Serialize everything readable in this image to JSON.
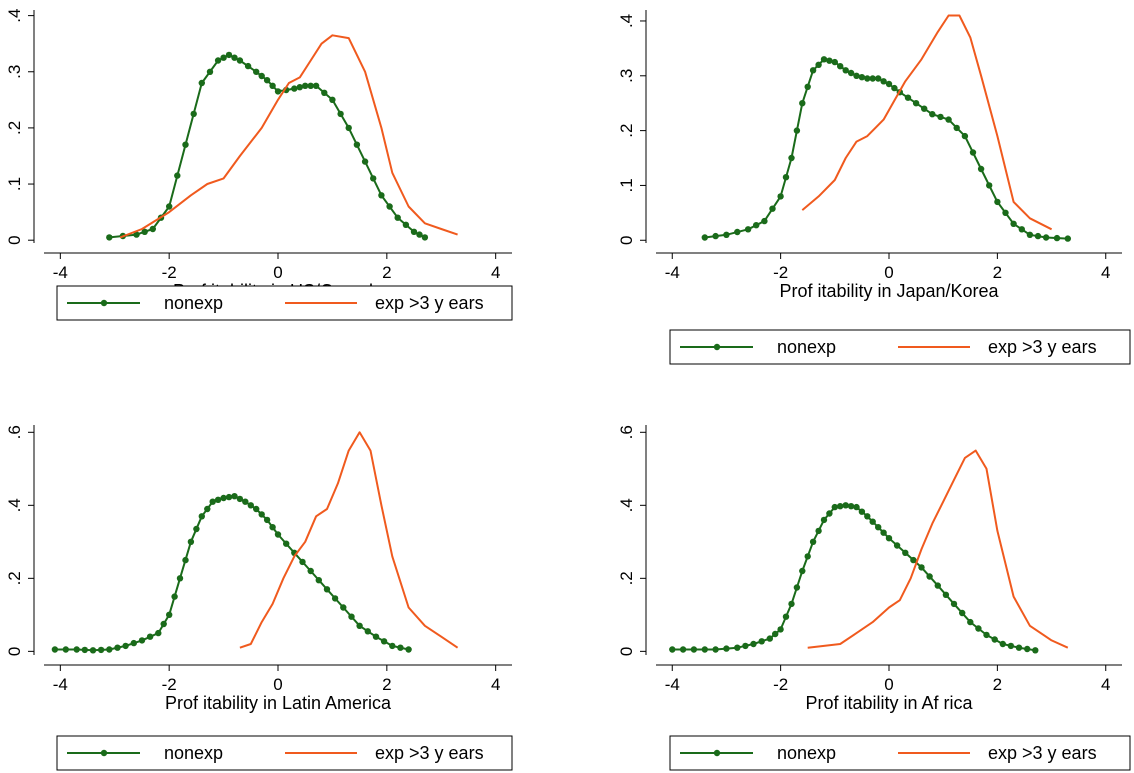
{
  "chart_data": [
    {
      "type": "line",
      "xlabel": "Prof itability  in US/Canada",
      "xticks": [
        -4,
        -2,
        0,
        2,
        4
      ],
      "yticks": [
        0,
        0.1,
        0.2,
        0.3,
        0.4
      ],
      "ytick_labels": [
        "0",
        ".1",
        ".2",
        ".3",
        ".4"
      ],
      "xlim": [
        -4.3,
        4.3
      ],
      "ylim": [
        -0.005,
        0.41
      ],
      "legend": [
        "nonexp",
        "exp >3 y ears"
      ],
      "series": [
        {
          "name": "nonexp",
          "color": "#1a6b1a",
          "marker": "dot",
          "x": [
            -3.1,
            -2.6,
            -2.3,
            -2.0,
            -1.7,
            -1.4,
            -1.1,
            -0.9,
            -0.7,
            -0.4,
            -0.2,
            0.0,
            0.3,
            0.5,
            0.7,
            1.0,
            1.3,
            1.6,
            1.9,
            2.2,
            2.5,
            2.7
          ],
          "y": [
            0.005,
            0.01,
            0.02,
            0.06,
            0.17,
            0.28,
            0.32,
            0.33,
            0.32,
            0.3,
            0.285,
            0.265,
            0.27,
            0.275,
            0.275,
            0.25,
            0.2,
            0.14,
            0.08,
            0.04,
            0.015,
            0.005
          ]
        },
        {
          "name": "exp >3 y ears",
          "color": "#f05a1e",
          "x": [
            -2.9,
            -2.5,
            -2.0,
            -1.6,
            -1.3,
            -1.0,
            -0.7,
            -0.3,
            0.0,
            0.2,
            0.4,
            0.6,
            0.8,
            1.0,
            1.3,
            1.6,
            1.9,
            2.1,
            2.4,
            2.7,
            3.0,
            3.3
          ],
          "y": [
            0.005,
            0.02,
            0.05,
            0.08,
            0.1,
            0.11,
            0.15,
            0.2,
            0.25,
            0.28,
            0.29,
            0.32,
            0.35,
            0.365,
            0.36,
            0.3,
            0.2,
            0.12,
            0.06,
            0.03,
            0.02,
            0.01
          ]
        }
      ]
    },
    {
      "type": "line",
      "xlabel": "Prof itability  in Japan/Korea",
      "xticks": [
        -4,
        -2,
        0,
        2,
        4
      ],
      "yticks": [
        0,
        0.1,
        0.2,
        0.3,
        0.4
      ],
      "ytick_labels": [
        "0",
        ".1",
        ".2",
        ".3",
        ".4"
      ],
      "xlim": [
        -4.3,
        4.3
      ],
      "ylim": [
        -0.005,
        0.42
      ],
      "legend": [
        "nonexp",
        "exp >3 y ears"
      ],
      "series": [
        {
          "name": "nonexp",
          "color": "#1a6b1a",
          "marker": "dot",
          "x": [
            -3.4,
            -3.0,
            -2.6,
            -2.3,
            -2.0,
            -1.8,
            -1.6,
            -1.4,
            -1.2,
            -1.0,
            -0.8,
            -0.6,
            -0.4,
            -0.2,
            0.0,
            0.2,
            0.5,
            0.8,
            1.1,
            1.4,
            1.7,
            2.0,
            2.3,
            2.6,
            2.9,
            3.3
          ],
          "y": [
            0.005,
            0.01,
            0.02,
            0.035,
            0.08,
            0.15,
            0.25,
            0.31,
            0.33,
            0.325,
            0.31,
            0.3,
            0.295,
            0.295,
            0.285,
            0.27,
            0.25,
            0.23,
            0.22,
            0.19,
            0.13,
            0.07,
            0.03,
            0.01,
            0.005,
            0.003
          ]
        },
        {
          "name": "exp >3 y ears",
          "color": "#f05a1e",
          "x": [
            -1.6,
            -1.3,
            -1.0,
            -0.8,
            -0.6,
            -0.4,
            -0.1,
            0.1,
            0.3,
            0.6,
            0.9,
            1.1,
            1.3,
            1.5,
            1.7,
            2.0,
            2.3,
            2.6,
            3.0
          ],
          "y": [
            0.055,
            0.08,
            0.11,
            0.15,
            0.18,
            0.19,
            0.22,
            0.255,
            0.29,
            0.33,
            0.38,
            0.41,
            0.41,
            0.37,
            0.3,
            0.19,
            0.07,
            0.04,
            0.02
          ]
        }
      ]
    },
    {
      "type": "line",
      "xlabel": "Prof itability  in Latin America",
      "xticks": [
        -4,
        -2,
        0,
        2,
        4
      ],
      "yticks": [
        0,
        0.2,
        0.4,
        0.6
      ],
      "ytick_labels": [
        "0",
        ".2",
        ".4",
        ".6"
      ],
      "xlim": [
        -4.3,
        4.3
      ],
      "ylim": [
        -0.01,
        0.62
      ],
      "legend": [
        "nonexp",
        "exp >3 y ears"
      ],
      "series": [
        {
          "name": "nonexp",
          "color": "#1a6b1a",
          "marker": "dot",
          "x": [
            -4.1,
            -3.7,
            -3.4,
            -3.1,
            -2.8,
            -2.5,
            -2.2,
            -2.0,
            -1.8,
            -1.6,
            -1.4,
            -1.2,
            -1.0,
            -0.8,
            -0.6,
            -0.4,
            -0.2,
            0.0,
            0.3,
            0.6,
            0.9,
            1.2,
            1.5,
            1.8,
            2.1,
            2.4
          ],
          "y": [
            0.005,
            0.005,
            0.003,
            0.005,
            0.015,
            0.03,
            0.05,
            0.1,
            0.2,
            0.3,
            0.37,
            0.41,
            0.42,
            0.425,
            0.41,
            0.39,
            0.36,
            0.32,
            0.27,
            0.22,
            0.17,
            0.12,
            0.07,
            0.04,
            0.015,
            0.005
          ]
        },
        {
          "name": "exp >3 y ears",
          "color": "#f05a1e",
          "x": [
            -0.7,
            -0.5,
            -0.3,
            -0.1,
            0.1,
            0.3,
            0.5,
            0.7,
            0.9,
            1.1,
            1.3,
            1.5,
            1.7,
            1.9,
            2.1,
            2.4,
            2.7,
            3.0,
            3.3
          ],
          "y": [
            0.01,
            0.02,
            0.08,
            0.13,
            0.2,
            0.26,
            0.3,
            0.37,
            0.39,
            0.46,
            0.55,
            0.6,
            0.55,
            0.4,
            0.26,
            0.12,
            0.07,
            0.04,
            0.01
          ]
        }
      ]
    },
    {
      "type": "line",
      "xlabel": "Prof itability  in Af rica",
      "xticks": [
        -4,
        -2,
        0,
        2,
        4
      ],
      "yticks": [
        0,
        0.2,
        0.4,
        0.6
      ],
      "ytick_labels": [
        "0",
        ".2",
        ".4",
        ".6"
      ],
      "xlim": [
        -4.3,
        4.3
      ],
      "ylim": [
        -0.01,
        0.62
      ],
      "legend": [
        "nonexp",
        "exp >3 y ears"
      ],
      "series": [
        {
          "name": "nonexp",
          "color": "#1a6b1a",
          "marker": "dot",
          "x": [
            -4.0,
            -3.6,
            -3.2,
            -2.8,
            -2.5,
            -2.2,
            -2.0,
            -1.8,
            -1.6,
            -1.4,
            -1.2,
            -1.0,
            -0.8,
            -0.6,
            -0.4,
            -0.2,
            0.0,
            0.3,
            0.6,
            0.9,
            1.2,
            1.5,
            1.8,
            2.1,
            2.4,
            2.7
          ],
          "y": [
            0.005,
            0.005,
            0.005,
            0.01,
            0.02,
            0.035,
            0.06,
            0.13,
            0.22,
            0.3,
            0.36,
            0.395,
            0.4,
            0.395,
            0.37,
            0.34,
            0.31,
            0.27,
            0.23,
            0.18,
            0.13,
            0.08,
            0.045,
            0.02,
            0.01,
            0.003
          ]
        },
        {
          "name": "exp >3 y ears",
          "color": "#f05a1e",
          "x": [
            -1.5,
            -1.2,
            -0.9,
            -0.6,
            -0.3,
            0.0,
            0.2,
            0.4,
            0.6,
            0.8,
            1.0,
            1.2,
            1.4,
            1.6,
            1.8,
            2.0,
            2.3,
            2.6,
            3.0,
            3.3
          ],
          "y": [
            0.01,
            0.015,
            0.02,
            0.05,
            0.08,
            0.12,
            0.14,
            0.2,
            0.28,
            0.35,
            0.41,
            0.47,
            0.53,
            0.55,
            0.5,
            0.33,
            0.15,
            0.07,
            0.03,
            0.01
          ]
        }
      ]
    }
  ]
}
